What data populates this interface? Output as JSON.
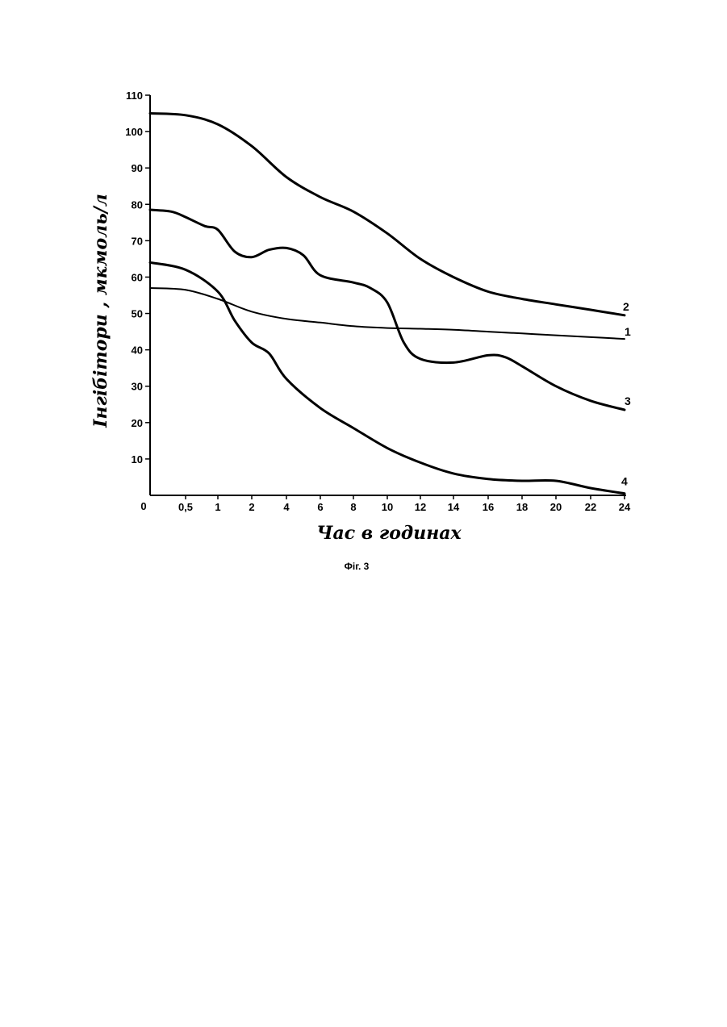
{
  "chart_data": {
    "type": "line",
    "xlabel": "Час в годинах",
    "ylabel": "Інгібітори , мкмоль/л",
    "caption": "Фіг. 3",
    "origin_label": "0",
    "y_ticks": [
      10,
      20,
      30,
      40,
      50,
      60,
      70,
      80,
      90,
      100,
      110
    ],
    "x_tick_labels": [
      "0,5",
      "1",
      "2",
      "4",
      "6",
      "8",
      "10",
      "12",
      "14",
      "16",
      "18",
      "20",
      "22",
      "24"
    ],
    "ylim": [
      0,
      110
    ],
    "grid": false,
    "series": [
      {
        "name": "1",
        "x": [
          0,
          0.5,
          1,
          2,
          4,
          6,
          8,
          10,
          12,
          14,
          16,
          18,
          20,
          22,
          24
        ],
        "y": [
          57,
          56.5,
          54,
          50.5,
          48.5,
          47.5,
          46.5,
          46,
          45.8,
          45.5,
          45,
          44.5,
          44,
          43.5,
          43
        ]
      },
      {
        "name": "2",
        "x": [
          0,
          0.5,
          1,
          2,
          4,
          6,
          8,
          10,
          12,
          14,
          16,
          18,
          20,
          22,
          24
        ],
        "y": [
          105,
          104.5,
          102,
          96,
          87.5,
          82,
          78,
          72,
          65,
          60,
          56,
          54,
          52.5,
          51,
          49.5
        ]
      },
      {
        "name": "3",
        "x": [
          0,
          0.3,
          0.5,
          0.8,
          1,
          1.5,
          2,
          3,
          4,
          5,
          6,
          8,
          9,
          10,
          11,
          12,
          14,
          16,
          17,
          18,
          20,
          22,
          24
        ],
        "y": [
          78.5,
          78,
          76.5,
          74,
          73,
          67,
          65.5,
          67.5,
          68,
          66,
          60.5,
          58.5,
          57,
          53,
          42,
          37.5,
          36.5,
          38.5,
          38,
          35.5,
          30,
          26,
          23.5
        ]
      },
      {
        "name": "4",
        "x": [
          0,
          0.5,
          1,
          1.5,
          2,
          3,
          4,
          6,
          8,
          10,
          12,
          14,
          16,
          18,
          20,
          22,
          24
        ],
        "y": [
          64,
          62,
          56,
          48,
          42,
          39,
          32,
          24,
          18.5,
          13,
          9,
          6,
          4.5,
          4,
          4,
          2,
          0.5
        ]
      }
    ]
  }
}
